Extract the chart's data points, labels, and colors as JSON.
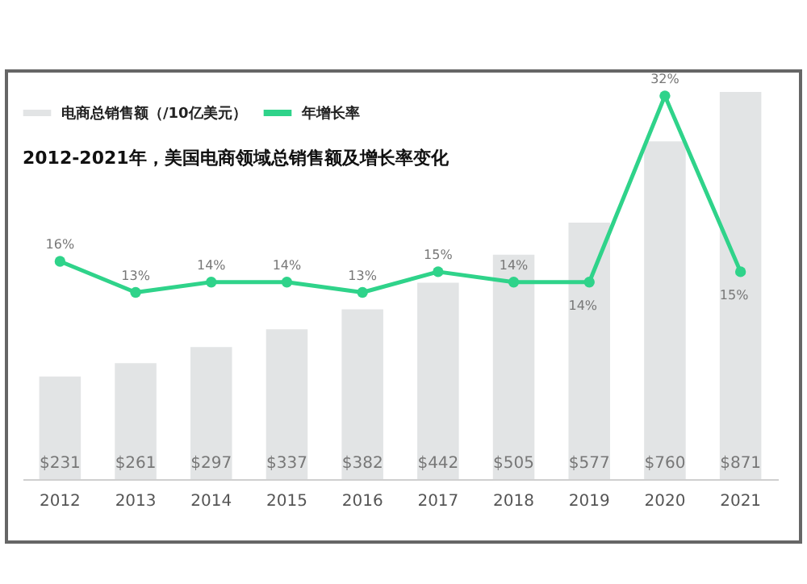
{
  "chart_data": {
    "type": "bar",
    "title": "2012-2021年，美国电商领域总销售额及增长率变化",
    "categories": [
      "2012",
      "2013",
      "2014",
      "2015",
      "2016",
      "2017",
      "2018",
      "2019",
      "2020",
      "2021"
    ],
    "legend": "top left",
    "tick_labels": "x",
    "marker": "circle",
    "series": [
      {
        "name": "电商总销售额（/10亿美元）",
        "color": "#e2e4e5",
        "values": [
          231,
          261,
          297,
          337,
          382,
          442,
          505,
          577,
          760,
          871
        ],
        "value_labels": [
          "$231",
          "$261",
          "$297",
          "$337",
          "$382",
          "$442",
          "$505",
          "$577",
          "$760",
          "$871"
        ]
      },
      {
        "name": "年增长率",
        "type": "line",
        "axis": "y2",
        "color": "#2fd38a",
        "values": [
          16,
          13,
          14,
          14,
          13,
          15,
          14,
          14,
          32,
          15
        ],
        "value_labels": [
          "16%",
          "13%",
          "14%",
          "14%",
          "13%",
          "15%",
          "14%",
          "14%",
          "32%",
          "15%"
        ]
      }
    ]
  }
}
